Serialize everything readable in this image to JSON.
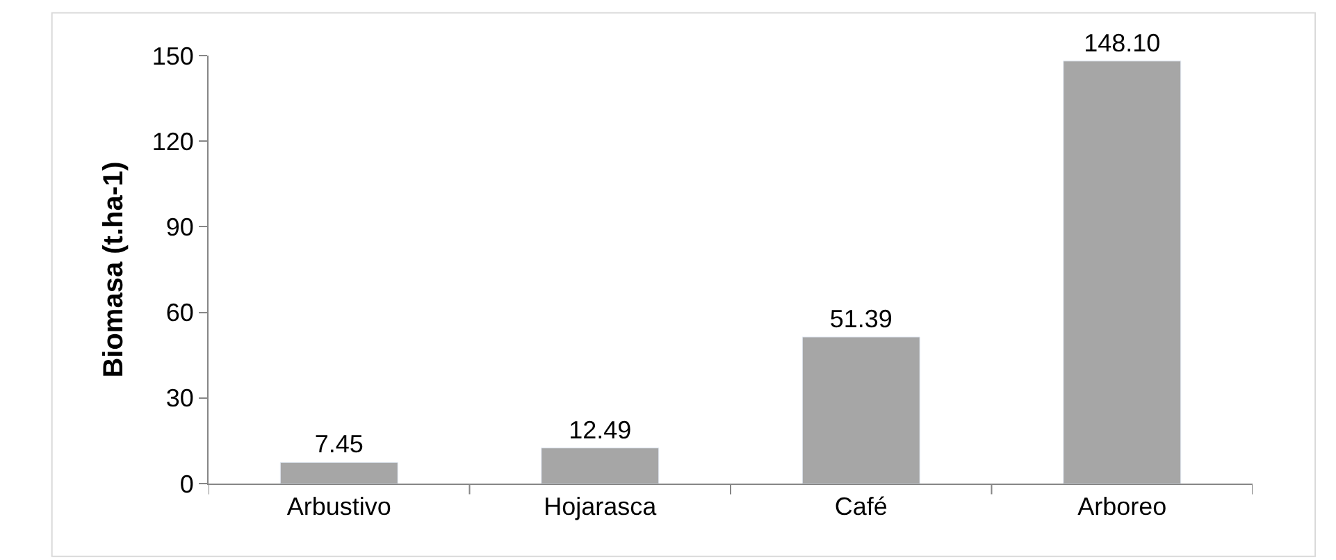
{
  "chart_data": {
    "type": "bar",
    "ylabel": "Biomasa (t.ha-1)",
    "categories": [
      "Arbustivo",
      "Hojarasca",
      "Café",
      "Arboreo"
    ],
    "values": [
      7.45,
      12.49,
      51.39,
      148.1
    ],
    "value_labels": [
      "7.45",
      "12.49",
      "51.39",
      "148.10"
    ],
    "color": "#a6a6a6",
    "ylim": [
      0,
      150
    ],
    "yticks": [
      0,
      30,
      60,
      90,
      120,
      150
    ]
  }
}
